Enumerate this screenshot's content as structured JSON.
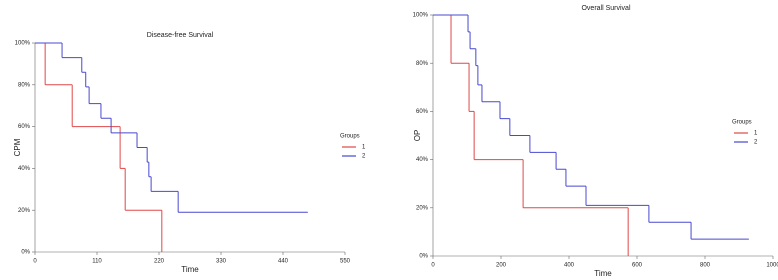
{
  "chart_data": [
    {
      "type": "step",
      "title": "Disease-free Survival",
      "x_label": "Time",
      "y_label": "CPM",
      "legend_title": "Groups",
      "xlim": [
        0,
        550
      ],
      "xticks": [
        0,
        110,
        220,
        330,
        440,
        550
      ],
      "ylim": [
        0,
        100
      ],
      "yticks": [
        {
          "value": 0,
          "label": "0%"
        },
        {
          "value": 20,
          "label": "20%"
        },
        {
          "value": 40,
          "label": "40%"
        },
        {
          "value": 60,
          "label": "60%"
        },
        {
          "value": 80,
          "label": "80%"
        },
        {
          "value": 100,
          "label": "100%"
        }
      ],
      "series": [
        {
          "name": "1",
          "color": "#e04848",
          "x": [
            0,
            18,
            66,
            151,
            160,
            225
          ],
          "values": [
            100,
            80,
            60,
            40,
            20,
            0
          ]
        },
        {
          "name": "2",
          "color": "#4848d0",
          "x": [
            0,
            48,
            83,
            90,
            96,
            117,
            135,
            181,
            199,
            202,
            206,
            254,
            484
          ],
          "values": [
            100,
            93,
            86,
            79,
            71,
            64,
            57,
            50,
            43,
            36,
            29,
            19,
            19
          ]
        }
      ]
    },
    {
      "type": "step",
      "title": "Overall  Survival",
      "x_label": "Time",
      "y_label": "OP",
      "legend_title": "Groups",
      "xlim": [
        0,
        1000
      ],
      "xticks": [
        0,
        200,
        400,
        600,
        800,
        1000
      ],
      "ylim": [
        0,
        100
      ],
      "yticks": [
        {
          "value": 0,
          "label": "0%"
        },
        {
          "value": 20,
          "label": "20%"
        },
        {
          "value": 40,
          "label": "40%"
        },
        {
          "value": 60,
          "label": "60%"
        },
        {
          "value": 80,
          "label": "80%"
        },
        {
          "value": 100,
          "label": "100%"
        }
      ],
      "series": [
        {
          "name": "1",
          "color": "#e04848",
          "x": [
            0,
            53,
            106,
            121,
            265,
            574
          ],
          "values": [
            100,
            80,
            60,
            40,
            20,
            0
          ]
        },
        {
          "name": "2",
          "color": "#4848d0",
          "x": [
            0,
            103,
            109,
            126,
            132,
            144,
            197,
            226,
            285,
            362,
            391,
            450,
            635,
            759,
            929
          ],
          "values": [
            100,
            93,
            86,
            79,
            71,
            64,
            57,
            50,
            43,
            36,
            29,
            21,
            14,
            7,
            7
          ]
        }
      ]
    }
  ]
}
